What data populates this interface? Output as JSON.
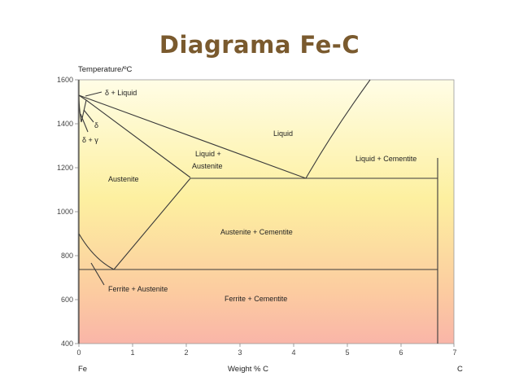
{
  "title": "Diagrama Fe-C",
  "diagram": {
    "y_axis_title": "Temperature/ºC",
    "x_axis_title": "Weight %  C",
    "x_left_label": "Fe",
    "x_right_label": "C",
    "x_ticks": [
      "0",
      "1",
      "2",
      "3",
      "4",
      "5",
      "6",
      "7"
    ],
    "y_ticks": [
      "400",
      "600",
      "800",
      "1000",
      "1200",
      "1400",
      "1600"
    ],
    "background_gradient": [
      "#fffde6",
      "#fdf0a0",
      "#fccca0",
      "#f9b5a8"
    ],
    "line_color": "#3a3a3a",
    "regions": {
      "delta_liquid": "δ + Liquid",
      "delta": "δ",
      "delta_gamma": "δ + γ",
      "liquid": "Liquid",
      "liquid_austenite_1": "Liquid +",
      "liquid_austenite_2": "Austenite",
      "liquid_cementite": "Liquid + Cementite",
      "austenite": "Austenite",
      "austenite_cementite": "Austenite + Cementite",
      "ferrite_austenite": "Ferrite + Austenite",
      "ferrite_cementite": "Ferrite + Cementite"
    }
  }
}
